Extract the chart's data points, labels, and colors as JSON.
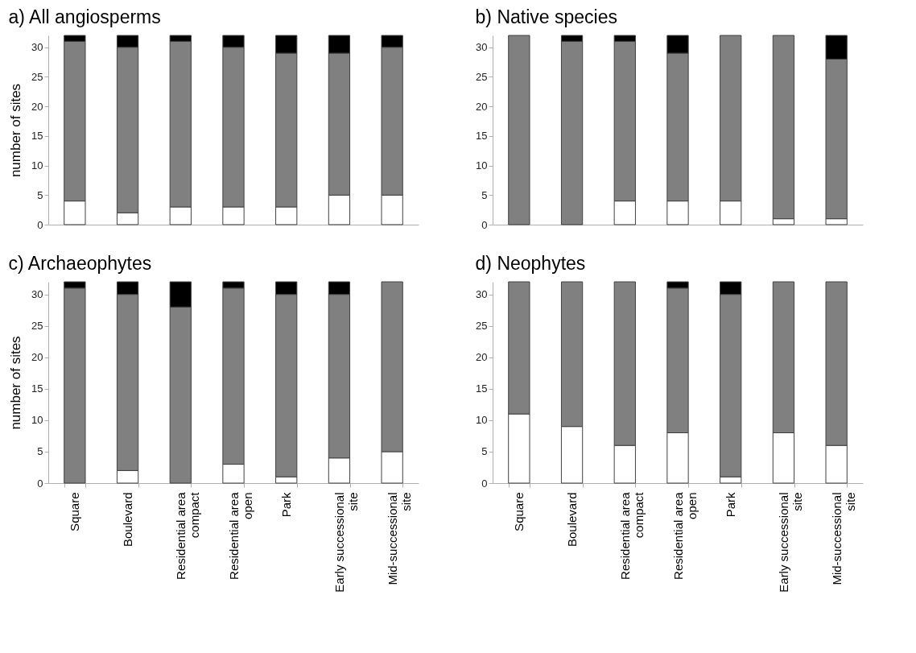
{
  "chart_data": [
    {
      "type": "bar",
      "title": "a) All angiosperms",
      "ylabel": "number of sites",
      "stacked": true,
      "tick_labels": "y",
      "categories": [
        null,
        null,
        null,
        null,
        null,
        null,
        null
      ],
      "ylim": [
        0,
        32
      ],
      "yticks": [
        0,
        5,
        10,
        15,
        20,
        25,
        30
      ],
      "grid": false,
      "series": [
        {
          "color": "#ffffff",
          "values": [
            4,
            2,
            3,
            3,
            3,
            5,
            5
          ]
        },
        {
          "color": "#808080",
          "values": [
            27,
            28,
            28,
            27,
            26,
            24,
            25
          ]
        },
        {
          "color": "#000000",
          "values": [
            1,
            2,
            1,
            2,
            3,
            3,
            2
          ]
        }
      ]
    },
    {
      "type": "bar",
      "title": "b) Native species",
      "stacked": true,
      "tick_labels": "y",
      "categories": [
        null,
        null,
        null,
        null,
        null,
        null,
        null
      ],
      "ylim": [
        0,
        32
      ],
      "yticks": [
        0,
        5,
        10,
        15,
        20,
        25,
        30
      ],
      "grid": false,
      "series": [
        {
          "color": "#ffffff",
          "values": [
            0,
            0,
            4,
            4,
            4,
            1,
            1
          ]
        },
        {
          "color": "#808080",
          "values": [
            32,
            31,
            27,
            25,
            28,
            31,
            27
          ]
        },
        {
          "color": "#000000",
          "values": [
            0,
            1,
            1,
            3,
            0,
            0,
            4
          ]
        }
      ]
    },
    {
      "type": "bar",
      "title": "c) Archaeophytes",
      "ylabel": "number of sites",
      "stacked": true,
      "categories": [
        "Square",
        "Boulevard",
        "Residential area compact",
        "Residential  area open",
        "Park",
        "Early successional site",
        "Mid-successional site"
      ],
      "ylim": [
        0,
        32
      ],
      "yticks": [
        0,
        5,
        10,
        15,
        20,
        25,
        30
      ],
      "grid": false,
      "series": [
        {
          "color": "#ffffff",
          "values": [
            0,
            2,
            0,
            3,
            1,
            4,
            5
          ]
        },
        {
          "color": "#808080",
          "values": [
            31,
            28,
            28,
            28,
            29,
            26,
            27
          ]
        },
        {
          "color": "#000000",
          "values": [
            1,
            2,
            4,
            1,
            2,
            2,
            0
          ]
        }
      ]
    },
    {
      "type": "bar",
      "title": "d) Neophytes",
      "stacked": true,
      "categories": [
        "Square",
        "Boulevard",
        "Residential area compact",
        "Residential  area open",
        "Park",
        "Early successional site",
        "Mid-successional site"
      ],
      "ylim": [
        0,
        32
      ],
      "yticks": [
        0,
        5,
        10,
        15,
        20,
        25,
        30
      ],
      "grid": false,
      "series": [
        {
          "color": "#ffffff",
          "values": [
            11,
            9,
            6,
            8,
            1,
            8,
            6
          ]
        },
        {
          "color": "#808080",
          "values": [
            21,
            23,
            26,
            23,
            29,
            24,
            26
          ]
        },
        {
          "color": "#000000",
          "values": [
            0,
            0,
            0,
            1,
            2,
            0,
            0
          ]
        }
      ]
    }
  ]
}
